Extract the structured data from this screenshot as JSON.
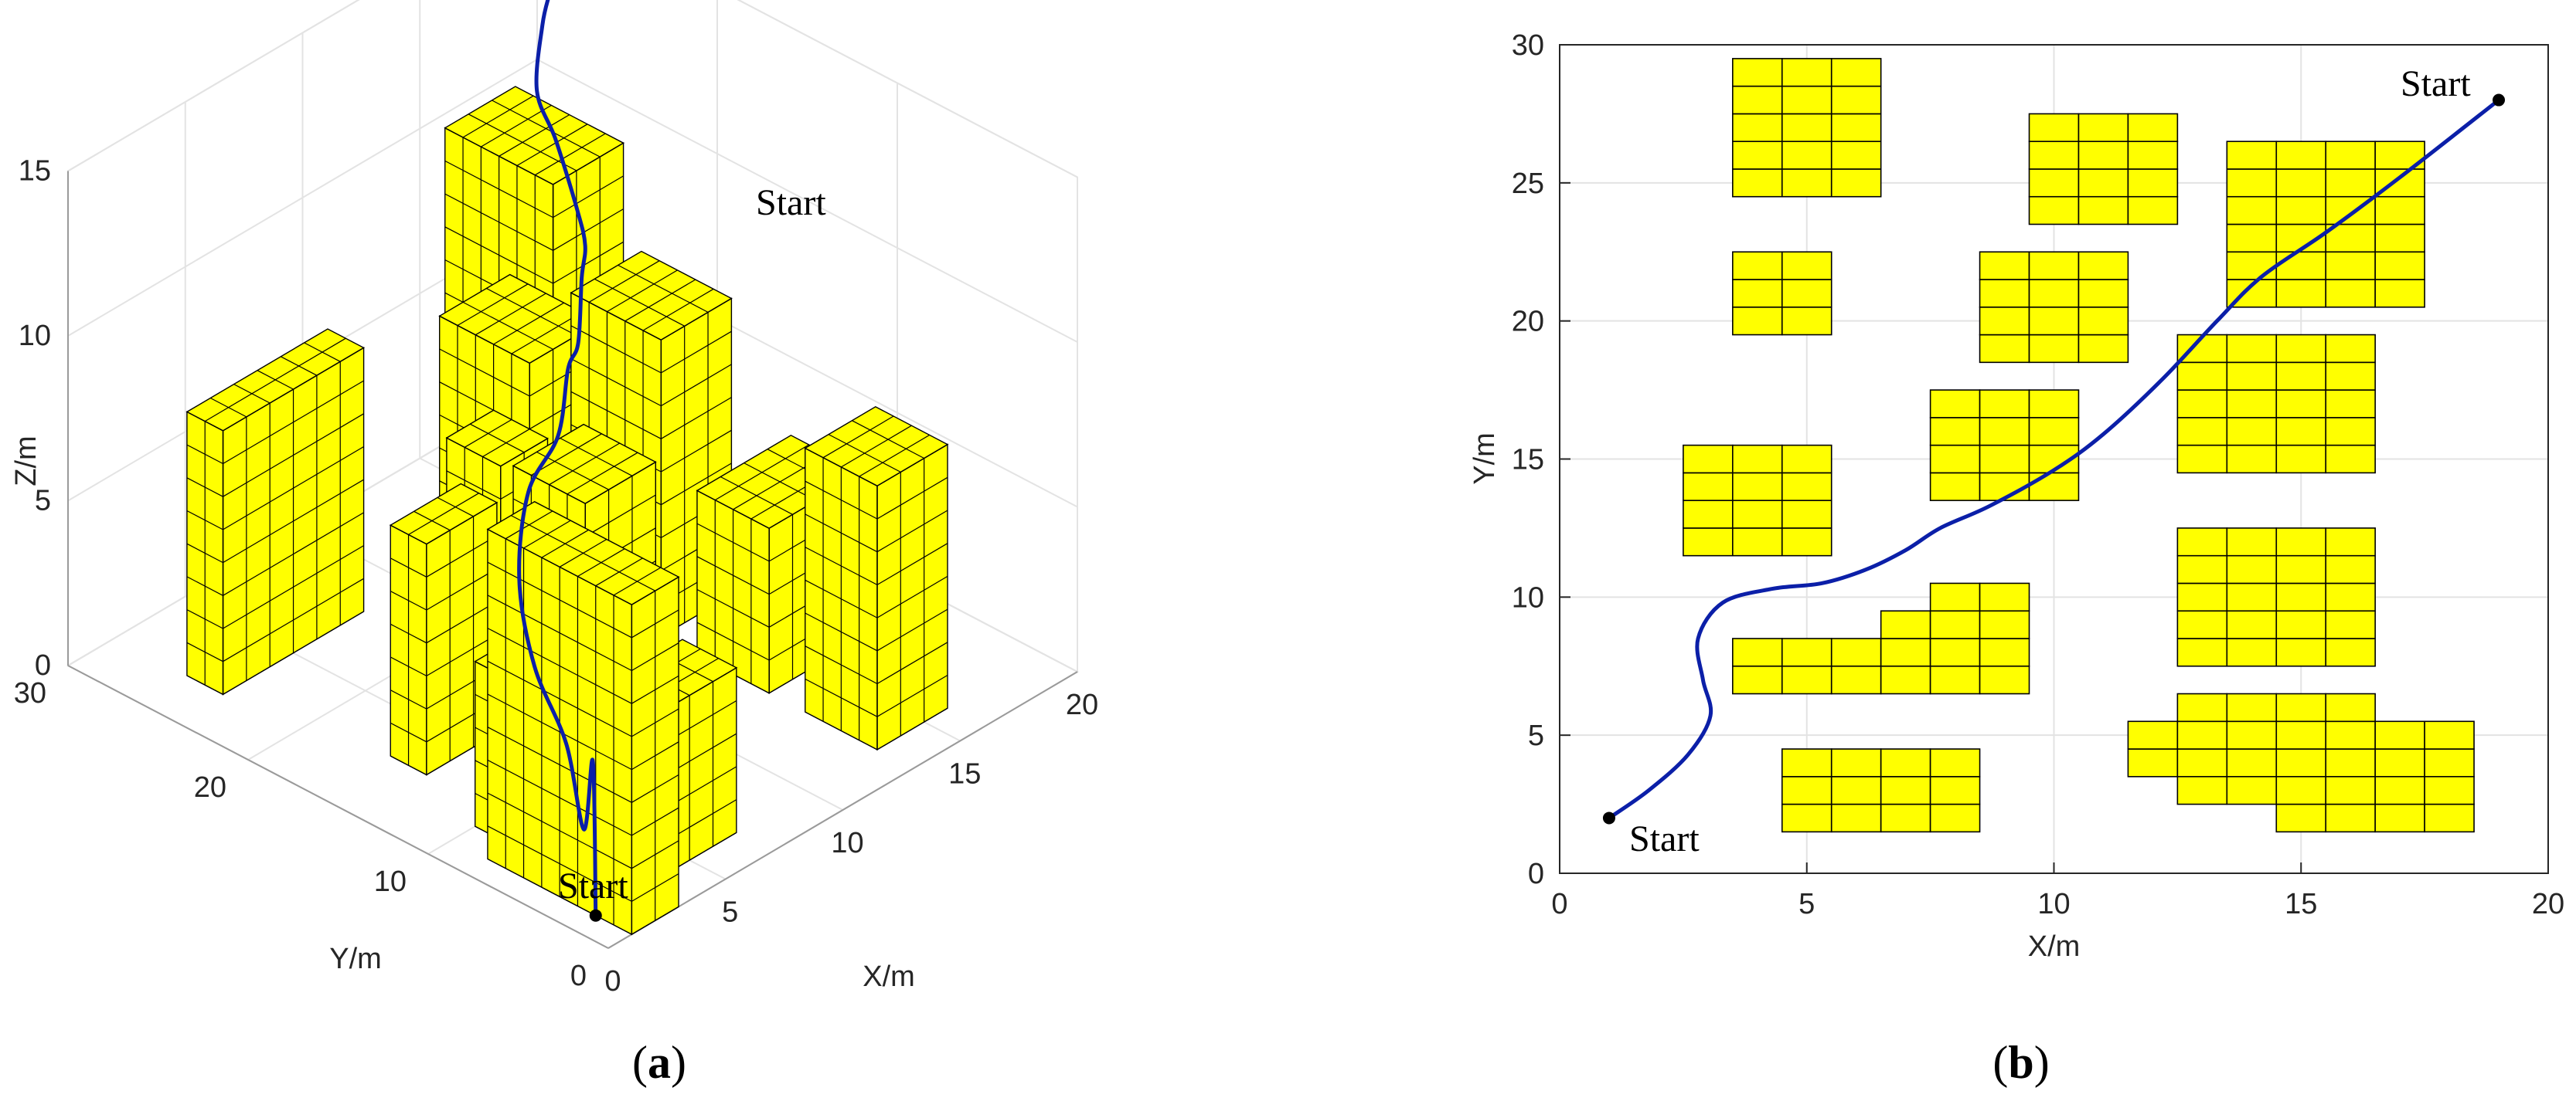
{
  "colors": {
    "obstacle": "#ffff00",
    "edge": "#000000",
    "path": "#0b1fa8",
    "grid": "#e3e3e3",
    "axis": "#262626"
  },
  "panels": [
    {
      "id": "a",
      "caption": "a",
      "chart_type": "3d-surface-path",
      "xlabel": "X/m",
      "ylabel": "Y/m",
      "zlabel": "Z/m",
      "xticks": [
        "0",
        "5",
        "10",
        "15",
        "20"
      ],
      "yticks": [
        "0",
        "10",
        "20",
        "30"
      ],
      "zticks": [
        "0",
        "5",
        "10",
        "15"
      ],
      "start_labels": [
        "Start",
        "Start"
      ]
    },
    {
      "id": "b",
      "caption": "b",
      "chart_type": "2d-path",
      "xlabel": "X/m",
      "ylabel": "Y/m",
      "xticks": [
        "0",
        "5",
        "10",
        "15",
        "20"
      ],
      "yticks": [
        "0",
        "5",
        "10",
        "15",
        "20",
        "25",
        "30"
      ],
      "start_labels": [
        "Start",
        "Start"
      ]
    }
  ],
  "chart_data": [
    {
      "type": "line",
      "title": "",
      "xlabel": "X/m",
      "ylabel": "Y/m",
      "zlabel": "Z/m",
      "xlim": [
        0,
        20
      ],
      "ylim": [
        0,
        30
      ],
      "zlim": [
        0,
        15
      ],
      "grid": true,
      "obstacles_boxes": [
        {
          "x": [
            1,
            3
          ],
          "y": [
            0,
            8
          ],
          "z": [
            0,
            10
          ]
        },
        {
          "x": [
            1,
            7
          ],
          "y": [
            2,
            5
          ],
          "z": [
            0,
            5
          ]
        },
        {
          "x": [
            2,
            4
          ],
          "y": [
            5,
            10
          ],
          "z": [
            0,
            5
          ]
        },
        {
          "x": [
            12,
            15
          ],
          "y": [
            20,
            25
          ],
          "z": [
            0,
            7
          ]
        },
        {
          "x": [
            9,
            12
          ],
          "y": [
            13,
            17
          ],
          "z": [
            0,
            6
          ]
        },
        {
          "x": [
            10,
            12
          ],
          "y": [
            19,
            22
          ],
          "z": [
            0,
            5
          ]
        },
        {
          "x": [
            13,
            16
          ],
          "y": [
            14,
            19
          ],
          "z": [
            0,
            9
          ]
        },
        {
          "x": [
            13,
            16
          ],
          "y": [
            20,
            26
          ],
          "z": [
            0,
            12
          ]
        },
        {
          "x": [
            13,
            17
          ],
          "y": [
            8,
            12
          ],
          "z": [
            0,
            5
          ]
        },
        {
          "x": [
            3,
            6
          ],
          "y": [
            14,
            16
          ],
          "z": [
            0,
            7
          ]
        },
        {
          "x": [
            13,
            16
          ],
          "y": [
            2,
            6
          ],
          "z": [
            0,
            8
          ]
        },
        {
          "x": [
            2,
            8
          ],
          "y": [
            24,
            26
          ],
          "z": [
            0,
            8
          ]
        }
      ],
      "series": [
        {
          "x": [
            1,
            1.8,
            2.8,
            3.2,
            3,
            3.5,
            4.5,
            6,
            7.5,
            8.7,
            10,
            11.3,
            12.5,
            13.5,
            15,
            17,
            19
          ],
          "y": [
            2,
            3.2,
            5,
            6.5,
            8,
            9.5,
            10.3,
            10.6,
            12,
            13,
            14.5,
            16,
            18,
            20.5,
            23.5,
            25.8,
            28
          ],
          "z": [
            0,
            4,
            1,
            3,
            5,
            7,
            9,
            10,
            11,
            11,
            12,
            12,
            12,
            13,
            13,
            13.5,
            13
          ]
        }
      ]
    },
    {
      "type": "line",
      "title": "",
      "xlabel": "X/m",
      "ylabel": "Y/m",
      "xlim": [
        0,
        20
      ],
      "ylim": [
        0,
        30
      ],
      "grid": true,
      "obstacles": [
        {
          "x": [
            3.5,
            6.5
          ],
          "y": [
            24.5,
            29.5
          ],
          "cols": 3,
          "rows": 5
        },
        {
          "x": [
            9.5,
            12.5
          ],
          "y": [
            23.5,
            27.5
          ],
          "cols": 3,
          "rows": 4
        },
        {
          "x": [
            13.5,
            17.5
          ],
          "y": [
            20.5,
            26.5
          ],
          "cols": 4,
          "rows": 6
        },
        {
          "x": [
            3.5,
            5.5
          ],
          "y": [
            19.5,
            22.5
          ],
          "cols": 2,
          "rows": 3
        },
        {
          "x": [
            8.5,
            11.5
          ],
          "y": [
            18.5,
            22.5
          ],
          "cols": 3,
          "rows": 4
        },
        {
          "x": [
            12.5,
            16.5
          ],
          "y": [
            14.5,
            19.5
          ],
          "cols": 4,
          "rows": 5
        },
        {
          "x": [
            7.5,
            10.5
          ],
          "y": [
            13.5,
            17.5
          ],
          "cols": 3,
          "rows": 4
        },
        {
          "x": [
            2.5,
            5.5
          ],
          "y": [
            11.5,
            15.5
          ],
          "cols": 3,
          "rows": 4
        },
        {
          "x": [
            12.5,
            16.5
          ],
          "y": [
            7.5,
            12.5
          ],
          "cols": 4,
          "rows": 5
        },
        {
          "x": [
            3.5,
            9.5
          ],
          "y": [
            6.5,
            8.5
          ],
          "cols": 6,
          "rows": 2
        },
        {
          "x": [
            6.5,
            9.5
          ],
          "y": [
            8.5,
            9.5
          ],
          "cols": 3,
          "rows": 1
        },
        {
          "x": [
            7.5,
            9.5
          ],
          "y": [
            9.5,
            10.5
          ],
          "cols": 2,
          "rows": 1
        },
        {
          "x": [
            4.5,
            8.5
          ],
          "y": [
            1.5,
            4.5
          ],
          "cols": 4,
          "rows": 3
        },
        {
          "x": [
            11.5,
            18.5
          ],
          "y": [
            3.5,
            5.5
          ],
          "cols": 7,
          "rows": 2
        },
        {
          "x": [
            12.5,
            16.5
          ],
          "y": [
            5.5,
            6.5
          ],
          "cols": 4,
          "rows": 1
        },
        {
          "x": [
            12.5,
            14.5
          ],
          "y": [
            2.5,
            3.5
          ],
          "cols": 2,
          "rows": 1
        },
        {
          "x": [
            14.5,
            18.5
          ],
          "y": [
            1.5,
            3.5
          ],
          "cols": 4,
          "rows": 2
        }
      ],
      "series": [
        {
          "x": [
            1,
            1.8,
            2.6,
            3.05,
            2.9,
            2.8,
            3.3,
            4.3,
            5.3,
            6.2,
            7,
            7.7,
            8.7,
            10,
            11,
            12.2,
            13.3,
            14.2,
            15.5,
            17,
            19
          ],
          "y": [
            2,
            3,
            4.3,
            5.7,
            7,
            8.5,
            9.8,
            10.3,
            10.5,
            11,
            11.7,
            12.5,
            13.3,
            14.6,
            15.9,
            17.9,
            20,
            21.6,
            23.2,
            25.2,
            28
          ]
        }
      ]
    }
  ]
}
